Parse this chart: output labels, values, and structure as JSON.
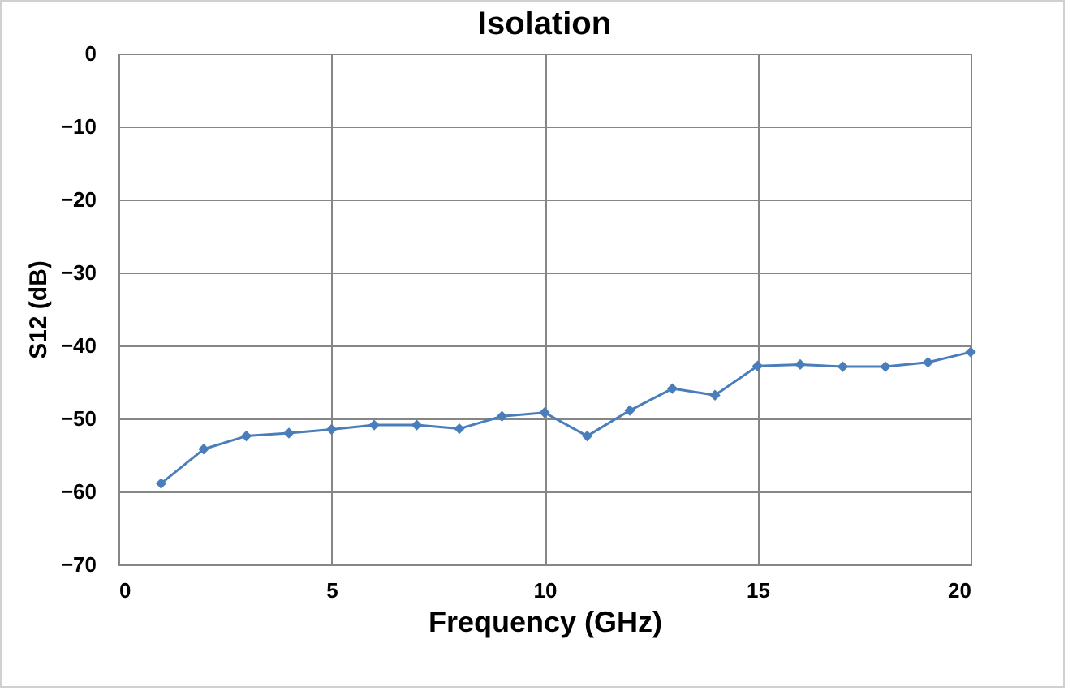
{
  "chart_data": {
    "type": "line",
    "title": "Isolation",
    "xlabel": "Frequency (GHz)",
    "ylabel": "S12 (dB)",
    "x": [
      1,
      2,
      3,
      4,
      5,
      6,
      7,
      8,
      9,
      10,
      11,
      12,
      13,
      14,
      15,
      16,
      17,
      18,
      19,
      20
    ],
    "series": [
      {
        "color": "#4a7ebb",
        "values": [
          -58.9,
          -54.2,
          -52.4,
          -52.0,
          -51.5,
          -50.9,
          -50.9,
          -51.4,
          -49.7,
          -49.2,
          -52.4,
          -48.9,
          -45.9,
          -46.8,
          -42.8,
          -42.6,
          -42.9,
          -42.9,
          -42.3,
          -40.9
        ]
      }
    ],
    "xlim": [
      0,
      20
    ],
    "xticks": [
      0,
      5,
      10,
      15,
      20
    ],
    "ylim": [
      -70,
      0
    ],
    "yticks": [
      -70,
      -60,
      -50,
      -40,
      -30,
      -20,
      -10,
      0
    ],
    "grid": true,
    "marker": "diamond",
    "line_style": "solid"
  }
}
